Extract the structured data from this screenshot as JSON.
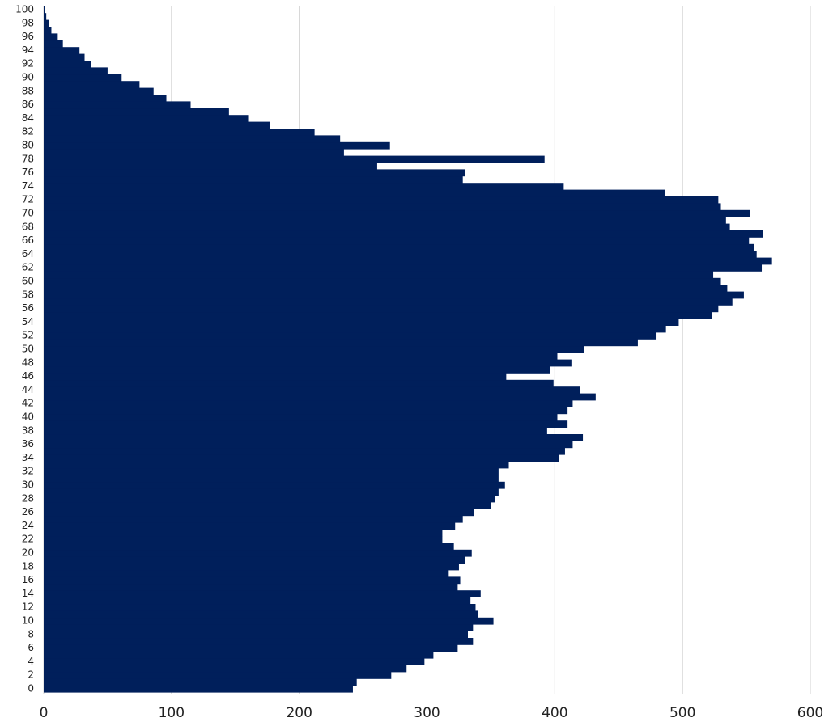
{
  "chart_data": {
    "type": "barh",
    "categories": [
      0,
      null,
      2,
      null,
      4,
      null,
      6,
      null,
      8,
      null,
      10,
      null,
      12,
      null,
      14,
      null,
      16,
      null,
      18,
      null,
      20,
      null,
      22,
      null,
      24,
      null,
      26,
      null,
      28,
      null,
      30,
      null,
      32,
      null,
      34,
      null,
      36,
      null,
      38,
      null,
      40,
      null,
      42,
      null,
      44,
      null,
      46,
      null,
      48,
      null,
      50,
      null,
      52,
      null,
      54,
      null,
      56,
      null,
      58,
      null,
      60,
      null,
      62,
      null,
      64,
      null,
      66,
      null,
      68,
      null,
      70,
      null,
      72,
      null,
      74,
      null,
      76,
      null,
      78,
      null,
      80,
      null,
      82,
      null,
      84,
      null,
      86,
      null,
      88,
      null,
      90,
      null,
      92,
      null,
      94,
      null,
      96,
      null,
      98,
      null,
      100
    ],
    "values": [
      242,
      245,
      272,
      284,
      298,
      305,
      324,
      336,
      332,
      336,
      352,
      340,
      338,
      334,
      342,
      324,
      326,
      317,
      325,
      330,
      335,
      321,
      312,
      312,
      322,
      328,
      337,
      350,
      353,
      356,
      361,
      356,
      356,
      364,
      403,
      408,
      414,
      422,
      394,
      410,
      402,
      410,
      414,
      432,
      420,
      399,
      362,
      396,
      413,
      402,
      423,
      465,
      479,
      487,
      497,
      523,
      528,
      539,
      548,
      535,
      530,
      524,
      562,
      570,
      558,
      556,
      552,
      563,
      537,
      534,
      553,
      530,
      528,
      486,
      407,
      328,
      330,
      261,
      392,
      235,
      271,
      232,
      212,
      177,
      160,
      145,
      115,
      96,
      86,
      75,
      61,
      50,
      37,
      32,
      28,
      15,
      11,
      6,
      4,
      2,
      1
    ],
    "color": "#001f5b",
    "xlim": [
      0,
      600
    ],
    "xticks": [
      0,
      100,
      200,
      300,
      400,
      500,
      600
    ],
    "grid": true
  }
}
